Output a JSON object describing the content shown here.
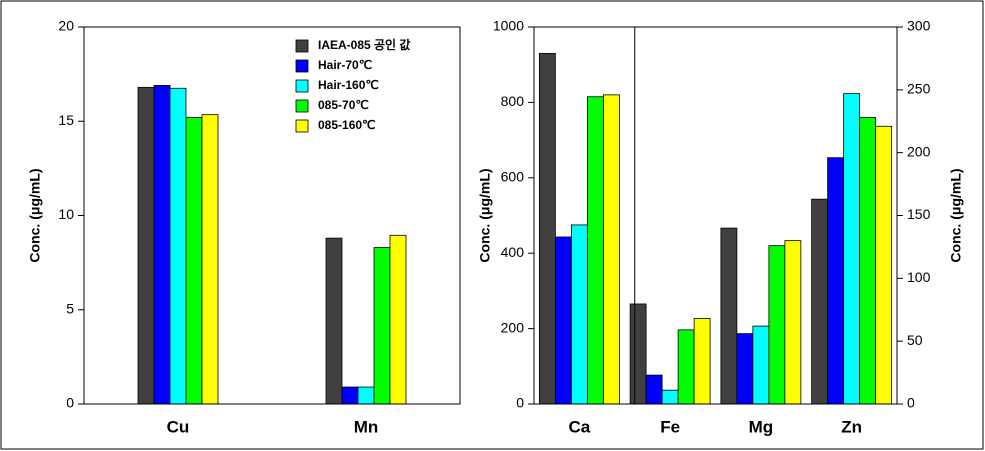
{
  "chart_data": [
    {
      "type": "bar",
      "categories": [
        "Cu",
        "Mn"
      ],
      "ylabel": "Conc. (μg/mL)",
      "ylim": [
        0,
        20
      ],
      "yticks": [
        0,
        5,
        10,
        15,
        20
      ],
      "legend": "top-right",
      "series": [
        {
          "name": "IAEA-085 공인 값",
          "color": "#404040",
          "values": [
            16.8,
            8.8
          ]
        },
        {
          "name": "Hair-70℃",
          "color": "#0000ff",
          "values": [
            16.9,
            0.9
          ]
        },
        {
          "name": "Hair-160℃",
          "color": "#00ffff",
          "values": [
            16.75,
            0.9
          ]
        },
        {
          "name": "085-70℃",
          "color": "#00ff00",
          "values": [
            15.2,
            8.3
          ]
        },
        {
          "name": "085-160℃",
          "color": "#ffff00",
          "values": [
            15.35,
            8.95
          ]
        }
      ]
    },
    {
      "type": "bar",
      "categories": [
        "Ca",
        "Fe",
        "Mg",
        "Zn"
      ],
      "category_axes": [
        "y",
        "y2",
        "y2",
        "y2"
      ],
      "ylabel": "Conc. (μg/mL)",
      "y2label": "Conc. (μg/mL)",
      "ylim": [
        0,
        1000
      ],
      "yticks": [
        0,
        200,
        400,
        600,
        800,
        1000
      ],
      "y2lim": [
        0,
        300
      ],
      "y2ticks": [
        0,
        50,
        100,
        150,
        200,
        250,
        300
      ],
      "series": [
        {
          "color": "#404040",
          "values": [
            930,
            79.6,
            140,
            163
          ]
        },
        {
          "color": "#0000ff",
          "values": [
            443,
            23,
            56,
            196
          ]
        },
        {
          "color": "#00ffff",
          "values": [
            475,
            11,
            62,
            247
          ]
        },
        {
          "color": "#00ff00",
          "values": [
            815,
            59,
            126,
            228
          ]
        },
        {
          "color": "#ffff00",
          "values": [
            820,
            68,
            130,
            221
          ]
        }
      ]
    }
  ]
}
